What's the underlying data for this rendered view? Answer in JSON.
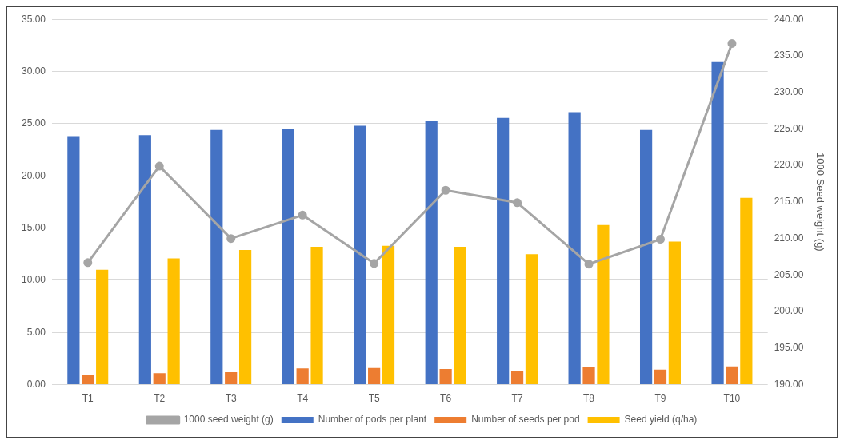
{
  "chart_data": {
    "type": "bar",
    "categories": [
      "T1",
      "T2",
      "T3",
      "T4",
      "T5",
      "T6",
      "T7",
      "T8",
      "T9",
      "T10"
    ],
    "series": [
      {
        "name": "Number of pods per plant",
        "color": "#4472c4",
        "values": [
          23.8,
          23.9,
          24.4,
          24.5,
          24.8,
          25.3,
          25.55,
          26.1,
          24.4,
          30.9
        ]
      },
      {
        "name": "Number of seeds per pod",
        "color": "#ed7d31",
        "values": [
          0.95,
          1.1,
          1.2,
          1.55,
          1.6,
          1.5,
          1.3,
          1.65,
          1.45,
          1.75
        ]
      },
      {
        "name": "Seed yield (q/ha)",
        "color": "#ffc000",
        "values": [
          11.0,
          12.1,
          12.9,
          13.2,
          13.3,
          13.2,
          12.5,
          15.3,
          13.7,
          17.9
        ]
      },
      {
        "name": "1000 seed weight (g)",
        "type": "line",
        "axis": "y2",
        "color": "#a5a5a5",
        "marker": "circle",
        "values": [
          206.7,
          219.9,
          210.0,
          213.2,
          206.6,
          216.6,
          214.9,
          206.5,
          209.9,
          236.7
        ]
      }
    ],
    "y2label": "1000 Seed weight (g)",
    "ylim": [
      0,
      35
    ],
    "yticks": [
      {
        "value": 0,
        "label": "0.00"
      },
      {
        "value": 5,
        "label": "5.00"
      },
      {
        "value": 10,
        "label": "10.00"
      },
      {
        "value": 15,
        "label": "15.00"
      },
      {
        "value": 20,
        "label": "20.00"
      },
      {
        "value": 25,
        "label": "25.00"
      },
      {
        "value": 30,
        "label": "30.00"
      },
      {
        "value": 35,
        "label": "35.00"
      }
    ],
    "y2lim": [
      190,
      240
    ],
    "y2ticks": [
      {
        "value": 190,
        "label": "190.00"
      },
      {
        "value": 195,
        "label": "195.00"
      },
      {
        "value": 200,
        "label": "200.00"
      },
      {
        "value": 205,
        "label": "205.00"
      },
      {
        "value": 210,
        "label": "210.00"
      },
      {
        "value": 215,
        "label": "215.00"
      },
      {
        "value": 220,
        "label": "220.00"
      },
      {
        "value": 225,
        "label": "225.00"
      },
      {
        "value": 230,
        "label": "230.00"
      },
      {
        "value": 235,
        "label": "235.00"
      },
      {
        "value": 240,
        "label": "240.00"
      }
    ],
    "grid": "y",
    "legend": "bottom"
  }
}
